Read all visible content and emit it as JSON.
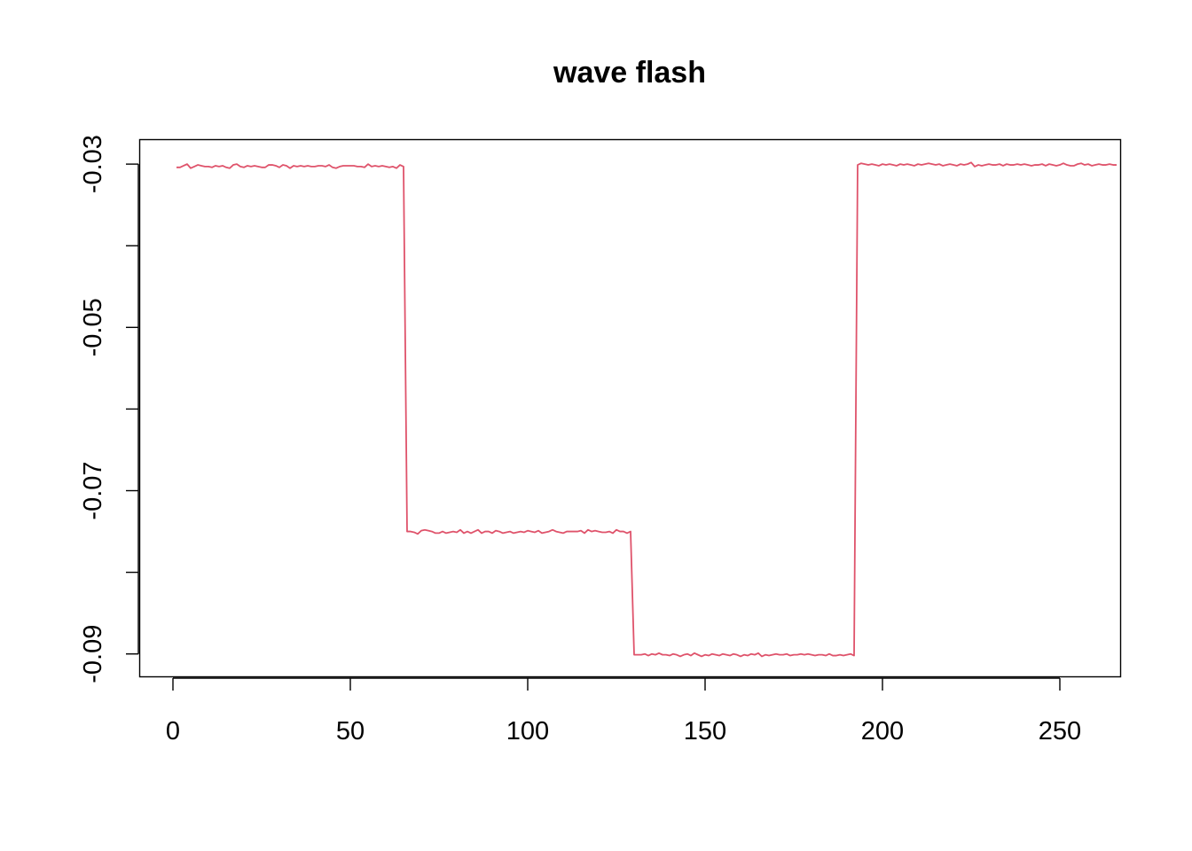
{
  "chart_data": {
    "type": "line",
    "title": "wave flash",
    "xlabel": "",
    "ylabel": "",
    "xlim": [
      0,
      256
    ],
    "ylim": [
      -0.0928,
      -0.027
    ],
    "x_ticks": [
      0,
      50,
      100,
      150,
      200,
      250
    ],
    "x_tick_labels": [
      "0",
      "50",
      "100",
      "150",
      "200",
      "250"
    ],
    "y_ticks": [
      -0.03,
      -0.04,
      -0.05,
      -0.06,
      -0.07,
      -0.08,
      -0.09
    ],
    "y_tick_labels": [
      "-0.03",
      "",
      "-0.05",
      "",
      "-0.07",
      "",
      "-0.09"
    ],
    "grid": false,
    "legend": "none",
    "series": [
      {
        "color": "#DF536B",
        "x_start": 1,
        "values": [
          -0.0304,
          -0.0304,
          -0.0302,
          -0.03,
          -0.0305,
          -0.0303,
          -0.0301,
          -0.0302,
          -0.0303,
          -0.0303,
          -0.0304,
          -0.0302,
          -0.0303,
          -0.0302,
          -0.0304,
          -0.0305,
          -0.0301,
          -0.03,
          -0.0303,
          -0.0304,
          -0.0302,
          -0.0303,
          -0.0302,
          -0.0303,
          -0.0304,
          -0.0304,
          -0.0301,
          -0.0301,
          -0.0302,
          -0.0304,
          -0.0301,
          -0.0302,
          -0.0305,
          -0.0302,
          -0.0303,
          -0.0302,
          -0.0303,
          -0.0302,
          -0.0303,
          -0.0303,
          -0.0302,
          -0.0302,
          -0.0303,
          -0.0301,
          -0.0304,
          -0.0305,
          -0.0303,
          -0.0302,
          -0.0302,
          -0.0302,
          -0.0302,
          -0.0303,
          -0.0303,
          -0.0304,
          -0.03,
          -0.0303,
          -0.0302,
          -0.0303,
          -0.0302,
          -0.0303,
          -0.0304,
          -0.0303,
          -0.0305,
          -0.0301,
          -0.0303,
          -0.075,
          -0.075,
          -0.0751,
          -0.0753,
          -0.0749,
          -0.0748,
          -0.0749,
          -0.075,
          -0.0752,
          -0.0752,
          -0.075,
          -0.0752,
          -0.0751,
          -0.075,
          -0.0751,
          -0.0748,
          -0.0752,
          -0.075,
          -0.0752,
          -0.075,
          -0.0748,
          -0.0752,
          -0.075,
          -0.075,
          -0.0752,
          -0.0749,
          -0.075,
          -0.0752,
          -0.0751,
          -0.075,
          -0.0752,
          -0.0751,
          -0.075,
          -0.0751,
          -0.0749,
          -0.075,
          -0.0751,
          -0.0749,
          -0.0752,
          -0.0751,
          -0.075,
          -0.0748,
          -0.075,
          -0.0751,
          -0.0752,
          -0.075,
          -0.075,
          -0.075,
          -0.075,
          -0.0749,
          -0.0752,
          -0.0748,
          -0.075,
          -0.0749,
          -0.075,
          -0.0751,
          -0.0751,
          -0.075,
          -0.0752,
          -0.0748,
          -0.075,
          -0.075,
          -0.0752,
          -0.075,
          -0.0901,
          -0.0901,
          -0.0901,
          -0.09,
          -0.0902,
          -0.09,
          -0.0901,
          -0.0899,
          -0.0901,
          -0.0901,
          -0.0902,
          -0.09,
          -0.0901,
          -0.0903,
          -0.0901,
          -0.09,
          -0.0902,
          -0.0899,
          -0.0901,
          -0.0903,
          -0.0901,
          -0.0902,
          -0.09,
          -0.0901,
          -0.0902,
          -0.09,
          -0.0901,
          -0.0902,
          -0.09,
          -0.0901,
          -0.0903,
          -0.0901,
          -0.0902,
          -0.09,
          -0.0901,
          -0.0899,
          -0.0903,
          -0.0901,
          -0.0902,
          -0.0901,
          -0.09,
          -0.0901,
          -0.0901,
          -0.09,
          -0.0902,
          -0.0901,
          -0.0901,
          -0.09,
          -0.0901,
          -0.09,
          -0.0901,
          -0.0902,
          -0.0901,
          -0.0901,
          -0.0902,
          -0.09,
          -0.0902,
          -0.0902,
          -0.0901,
          -0.0902,
          -0.0901,
          -0.09,
          -0.0902,
          -0.0301,
          -0.0299,
          -0.03,
          -0.0301,
          -0.03,
          -0.0301,
          -0.0302,
          -0.03,
          -0.0301,
          -0.03,
          -0.0301,
          -0.0302,
          -0.03,
          -0.0301,
          -0.03,
          -0.0301,
          -0.0302,
          -0.03,
          -0.0301,
          -0.03,
          -0.0299,
          -0.03,
          -0.0301,
          -0.03,
          -0.0302,
          -0.0301,
          -0.03,
          -0.0301,
          -0.0302,
          -0.03,
          -0.0301,
          -0.03,
          -0.0298,
          -0.0303,
          -0.0301,
          -0.0302,
          -0.0301,
          -0.03,
          -0.0301,
          -0.0301,
          -0.03,
          -0.0302,
          -0.03,
          -0.0301,
          -0.0301,
          -0.03,
          -0.0301,
          -0.03,
          -0.0301,
          -0.0302,
          -0.0301,
          -0.0301,
          -0.03,
          -0.0302,
          -0.03,
          -0.0301,
          -0.0302,
          -0.0301,
          -0.0299,
          -0.0301,
          -0.0302,
          -0.0302,
          -0.03,
          -0.0299,
          -0.0301,
          -0.03,
          -0.0302,
          -0.0301,
          -0.03,
          -0.0301,
          -0.0301,
          -0.03,
          -0.0301,
          -0.0301
        ]
      }
    ]
  }
}
